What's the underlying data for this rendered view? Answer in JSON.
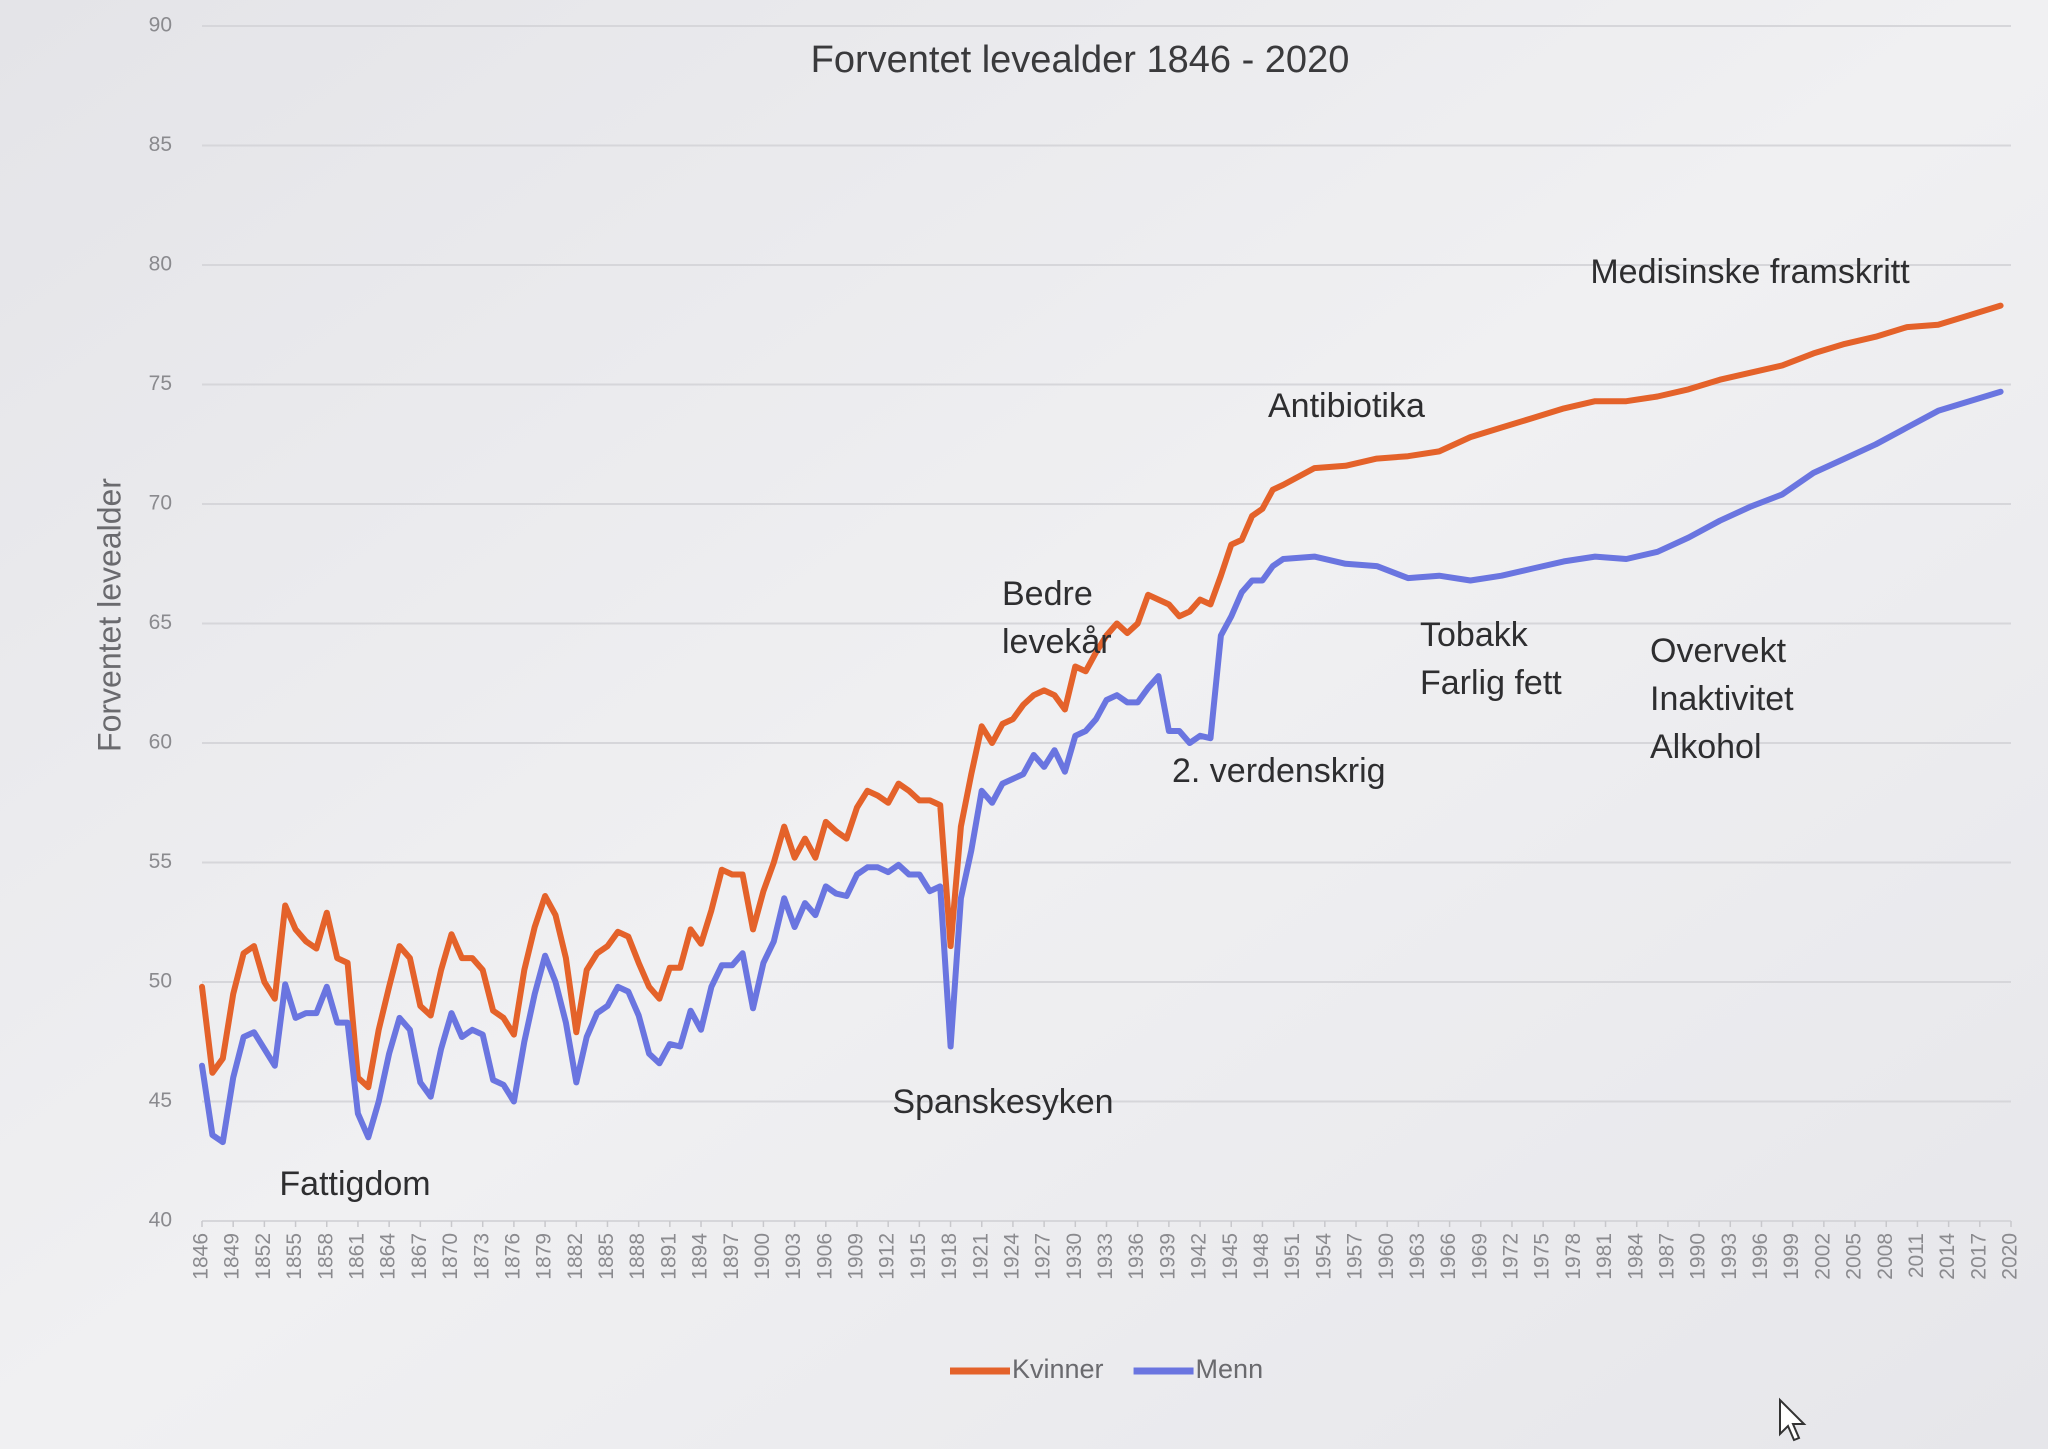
{
  "chart_data": {
    "type": "line",
    "title": "Forventet levealder 1846 - 2020",
    "y_label": "Forventet levealder",
    "x": [
      1846,
      1847,
      1848,
      1849,
      1850,
      1851,
      1852,
      1853,
      1854,
      1855,
      1856,
      1857,
      1858,
      1859,
      1860,
      1861,
      1862,
      1863,
      1864,
      1865,
      1866,
      1867,
      1868,
      1869,
      1870,
      1871,
      1872,
      1873,
      1874,
      1875,
      1876,
      1877,
      1878,
      1879,
      1880,
      1881,
      1882,
      1883,
      1884,
      1885,
      1886,
      1887,
      1888,
      1889,
      1890,
      1891,
      1892,
      1893,
      1894,
      1895,
      1896,
      1897,
      1898,
      1899,
      1900,
      1901,
      1902,
      1903,
      1904,
      1905,
      1906,
      1907,
      1908,
      1909,
      1910,
      1911,
      1912,
      1913,
      1914,
      1915,
      1916,
      1917,
      1918,
      1919,
      1920,
      1921,
      1922,
      1923,
      1924,
      1925,
      1926,
      1927,
      1928,
      1929,
      1930,
      1931,
      1932,
      1933,
      1934,
      1935,
      1936,
      1937,
      1938,
      1939,
      1940,
      1941,
      1942,
      1943,
      1944,
      1945,
      1946,
      1947,
      1948,
      1949,
      1950,
      1953,
      1956,
      1959,
      1962,
      1965,
      1968,
      1971,
      1974,
      1977,
      1980,
      1983,
      1986,
      1989,
      1992,
      1995,
      1998,
      2001,
      2004,
      2007,
      2010,
      2013,
      2016,
      2019
    ],
    "series": [
      {
        "name": "Kvinner",
        "color": "#e4622a",
        "values": [
          49.8,
          46.2,
          46.8,
          49.5,
          51.2,
          51.5,
          50.0,
          49.3,
          53.2,
          52.2,
          51.7,
          51.4,
          52.9,
          51.0,
          50.8,
          46.0,
          45.6,
          48.0,
          49.8,
          51.5,
          51.0,
          49.0,
          48.6,
          50.5,
          52.0,
          51.0,
          51.0,
          50.5,
          48.8,
          48.5,
          47.8,
          50.5,
          52.3,
          53.6,
          52.8,
          51.0,
          47.9,
          50.5,
          51.2,
          51.5,
          52.1,
          51.9,
          50.8,
          49.8,
          49.3,
          50.6,
          50.6,
          52.2,
          51.6,
          53.0,
          54.7,
          54.5,
          54.5,
          52.2,
          53.8,
          55.0,
          56.5,
          55.2,
          56.0,
          55.2,
          56.7,
          56.3,
          56.0,
          57.3,
          58.0,
          57.8,
          57.5,
          58.3,
          58.0,
          57.6,
          57.6,
          57.4,
          51.5,
          56.5,
          58.7,
          60.7,
          60.0,
          60.8,
          61.0,
          61.6,
          62.0,
          62.2,
          62.0,
          61.4,
          63.2,
          63.0,
          63.8,
          64.5,
          65.0,
          64.6,
          65.0,
          66.2,
          66.0,
          65.8,
          65.3,
          65.5,
          66.0,
          65.8,
          67.0,
          68.3,
          68.5,
          69.5,
          69.8,
          70.6,
          70.8,
          71.5,
          71.6,
          71.9,
          72.0,
          72.2,
          72.8,
          73.2,
          73.6,
          74.0,
          74.3,
          74.3,
          74.5,
          74.8,
          75.2,
          75.5,
          75.8,
          76.3,
          76.7,
          77.0,
          77.4,
          77.5,
          77.9,
          78.3
        ]
      },
      {
        "name": "Menn",
        "color": "#6a75e0",
        "values": [
          46.5,
          43.6,
          43.3,
          46.0,
          47.7,
          47.9,
          47.2,
          46.5,
          49.9,
          48.5,
          48.7,
          48.7,
          49.8,
          48.3,
          48.3,
          44.5,
          43.5,
          45.0,
          47.0,
          48.5,
          48.0,
          45.8,
          45.2,
          47.2,
          48.7,
          47.7,
          48.0,
          47.8,
          45.9,
          45.7,
          45.0,
          47.5,
          49.5,
          51.1,
          50.0,
          48.3,
          45.8,
          47.7,
          48.7,
          49.0,
          49.8,
          49.6,
          48.6,
          47.0,
          46.6,
          47.4,
          47.3,
          48.8,
          48.0,
          49.8,
          50.7,
          50.7,
          51.2,
          48.9,
          50.8,
          51.7,
          53.5,
          52.3,
          53.3,
          52.8,
          54.0,
          53.7,
          53.6,
          54.5,
          54.8,
          54.8,
          54.6,
          54.9,
          54.5,
          54.5,
          53.8,
          54.0,
          47.3,
          53.5,
          55.5,
          58.0,
          57.5,
          58.3,
          58.5,
          58.7,
          59.5,
          59.0,
          59.7,
          58.8,
          60.3,
          60.5,
          61.0,
          61.8,
          62.0,
          61.7,
          61.7,
          62.3,
          62.8,
          60.5,
          60.5,
          60.0,
          60.3,
          60.2,
          64.5,
          65.3,
          66.3,
          66.8,
          66.8,
          67.4,
          67.7,
          67.8,
          67.5,
          67.4,
          66.9,
          67.0,
          66.8,
          67.0,
          67.3,
          67.6,
          67.8,
          67.7,
          68.0,
          68.6,
          69.3,
          69.9,
          70.4,
          71.3,
          71.9,
          72.5,
          73.2,
          73.9,
          74.3,
          74.7
        ]
      }
    ],
    "xlim": [
      1846,
      2020
    ],
    "xticks": [
      1846,
      1849,
      1852,
      1855,
      1858,
      1861,
      1864,
      1867,
      1870,
      1873,
      1876,
      1879,
      1882,
      1885,
      1888,
      1891,
      1894,
      1897,
      1900,
      1903,
      1906,
      1909,
      1912,
      1915,
      1918,
      1921,
      1924,
      1927,
      1930,
      1933,
      1936,
      1939,
      1942,
      1945,
      1948,
      1951,
      1954,
      1957,
      1960,
      1963,
      1966,
      1969,
      1972,
      1975,
      1978,
      1981,
      1984,
      1987,
      1990,
      1993,
      1996,
      1999,
      2002,
      2005,
      2008,
      2011,
      2014,
      2017,
      2020
    ],
    "ylim": [
      40,
      90
    ],
    "yticks": [
      40,
      45,
      50,
      55,
      60,
      65,
      70,
      75,
      80,
      85,
      90
    ],
    "grid": true,
    "legend": "bottom",
    "annotations": [
      [
        "Fattigdom"
      ],
      [
        "Spanskesyken"
      ],
      [
        "Bedre",
        "levekår"
      ],
      [
        "2. verdenskrig"
      ],
      [
        "Antibiotika"
      ],
      [
        "Tobakk",
        "Farlig fett"
      ],
      [
        "Overvekt",
        "Inaktivitet",
        "Alkohol"
      ],
      [
        "Medisinske framskritt"
      ]
    ]
  }
}
